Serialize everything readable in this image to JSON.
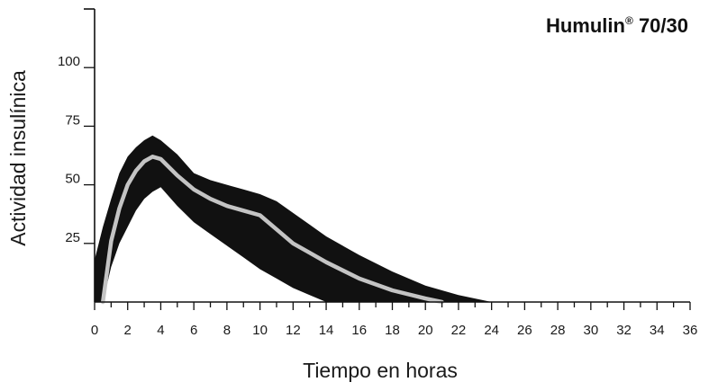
{
  "chart_data": {
    "type": "area",
    "title": "Humulin",
    "title_mark": "®",
    "title_suffix": " 70/30",
    "xlabel": "Tiempo en horas",
    "ylabel": "Actividad insulínica",
    "xlim": [
      0,
      36
    ],
    "ylim": [
      0,
      125
    ],
    "xticks": [
      0,
      2,
      4,
      6,
      8,
      10,
      12,
      14,
      16,
      18,
      20,
      22,
      24,
      26,
      28,
      30,
      32,
      34,
      36
    ],
    "yticks": [
      25,
      50,
      75,
      100
    ],
    "grid": false,
    "colors": {
      "band": "#111111",
      "mean": "#c4c4c4"
    },
    "series": [
      {
        "role": "upper_bound",
        "x": [
          0,
          0.5,
          1,
          1.5,
          2,
          2.5,
          3,
          3.5,
          4,
          5,
          6,
          7,
          8,
          9,
          10,
          11,
          12,
          13,
          14,
          16,
          18,
          20,
          22,
          24
        ],
        "y": [
          18,
          32,
          44,
          55,
          62,
          66,
          69,
          71,
          69,
          63,
          55,
          52,
          50,
          48,
          46,
          43,
          38,
          33,
          28,
          20,
          13,
          7,
          3,
          0
        ]
      },
      {
        "role": "mean",
        "x": [
          0.5,
          1,
          1.5,
          2,
          2.5,
          3,
          3.5,
          4,
          5,
          6,
          7,
          8,
          9,
          10,
          11,
          12,
          13,
          14,
          16,
          18,
          20,
          21
        ],
        "y": [
          0,
          26,
          40,
          50,
          56,
          60,
          62,
          61,
          54,
          48,
          44,
          41,
          39,
          37,
          31,
          25,
          21,
          17,
          10,
          5,
          1.5,
          0
        ]
      },
      {
        "role": "lower_bound",
        "x": [
          0,
          0.5,
          1,
          1.5,
          2,
          2.5,
          3,
          3.5,
          4,
          5,
          6,
          7,
          8,
          9,
          10,
          11,
          12,
          13,
          14
        ],
        "y": [
          0,
          0,
          15,
          25,
          32,
          39,
          44,
          47,
          49,
          41,
          34,
          29,
          24,
          19,
          14,
          10,
          6,
          3,
          0
        ]
      }
    ]
  }
}
